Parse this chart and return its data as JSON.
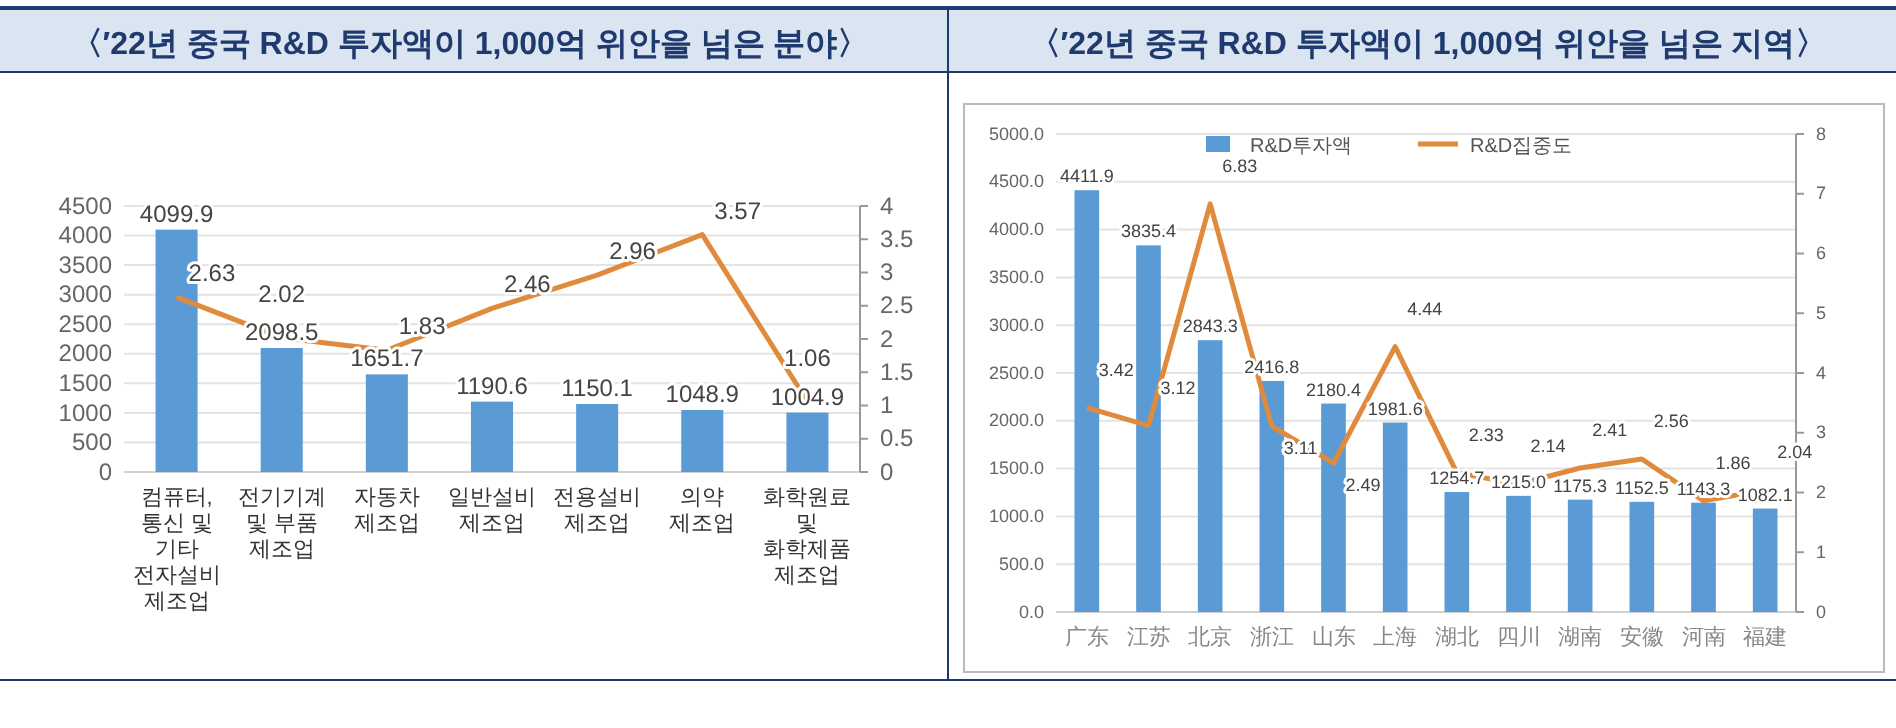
{
  "chart_data": [
    {
      "type": "bar",
      "title": "〈′22년  중국 R&D 투자액이 1,000억 위안을 넘은 분야〉",
      "categories": [
        "컴퓨터, 통신 및 기타 전자설비제조업",
        "전기기계 및 부품 제조업",
        "자동차 제조업",
        "일반설비 제조업",
        "전용설비 제조업",
        "의약 제조업",
        "화학원료 및 화학제품제조업"
      ],
      "series": [
        {
          "color": "#5b9bd5",
          "values": [
            4099.9,
            2098.5,
            1651.7,
            1190.6,
            1150.1,
            1048.9,
            1004.9
          ],
          "value_labels": [
            "4099.9",
            "2098.5",
            "1651.7",
            "1190.6",
            "1150.1",
            "1048.9",
            "1004.9"
          ]
        },
        {
          "type": "line",
          "axis": "y2",
          "color": "#e08a3c",
          "values": [
            2.63,
            2.02,
            1.83,
            2.46,
            2.96,
            3.57,
            1.06
          ],
          "value_labels": [
            "2.63",
            "2.02",
            "1.83",
            "2.46",
            "2.96",
            "3.57",
            "1.06"
          ]
        }
      ],
      "ylim": [
        0,
        4500
      ],
      "yticks": [
        0,
        500,
        1000,
        1500,
        2000,
        2500,
        3000,
        3500,
        4000,
        4500
      ],
      "y2lim": [
        0,
        4
      ],
      "y2ticks": [
        0,
        0.5,
        1,
        1.5,
        2,
        2.5,
        3,
        3.5,
        4
      ],
      "grid": "y",
      "legend": false,
      "marker": "none"
    },
    {
      "type": "bar",
      "title": "〈′22년 중국 R&D 투자액이 1,000억 위안을 넘은 지역〉",
      "categories": [
        "广东",
        "江苏",
        "北京",
        "浙江",
        "山东",
        "上海",
        "湖北",
        "四川",
        "湖南",
        "安徽",
        "河南",
        "福建"
      ],
      "series": [
        {
          "name": "R&D투자액",
          "color": "#5b9bd5",
          "values": [
            4411.9,
            3835.4,
            2843.3,
            2416.8,
            2180.4,
            1981.6,
            1254.7,
            1215.0,
            1175.3,
            1152.5,
            1143.3,
            1082.1
          ],
          "value_labels": [
            "4411.9",
            "3835.4",
            "2843.3",
            "2416.8",
            "2180.4",
            "1981.6",
            "1254.7",
            "1215.0",
            "1175.3",
            "1152.5",
            "1143.3",
            "1082.1"
          ]
        },
        {
          "type": "line",
          "name": "R&D집중도",
          "axis": "y2",
          "color": "#e08a3c",
          "values": [
            3.42,
            3.12,
            6.83,
            3.11,
            2.49,
            4.44,
            2.33,
            2.14,
            2.41,
            2.56,
            1.86,
            2.04
          ],
          "value_labels": [
            "3.42",
            "3.12",
            "6.83",
            "3.11",
            "2.49",
            "4.44",
            "2.33",
            "2.14",
            "2.41",
            "2.56",
            "1.86",
            "2.04"
          ]
        }
      ],
      "ylim": [
        0,
        5000
      ],
      "yticks": [
        {
          "value": 0,
          "label": "0.0"
        },
        {
          "value": 500,
          "label": "500.0"
        },
        {
          "value": 1000,
          "label": "1000.0"
        },
        {
          "value": 1500,
          "label": "1500.0"
        },
        {
          "value": 2000,
          "label": "2000.0"
        },
        {
          "value": 2500,
          "label": "2500.0"
        },
        {
          "value": 3000,
          "label": "3000.0"
        },
        {
          "value": 3500,
          "label": "3500.0"
        },
        {
          "value": 4000,
          "label": "4000.0"
        },
        {
          "value": 4500,
          "label": "4500.0"
        },
        {
          "value": 5000,
          "label": "5000.0"
        }
      ],
      "y2lim": [
        0,
        8
      ],
      "y2ticks": [
        0,
        1,
        2,
        3,
        4,
        5,
        6,
        7,
        8
      ],
      "grid": "y",
      "legend": "top",
      "marker": "none"
    }
  ]
}
